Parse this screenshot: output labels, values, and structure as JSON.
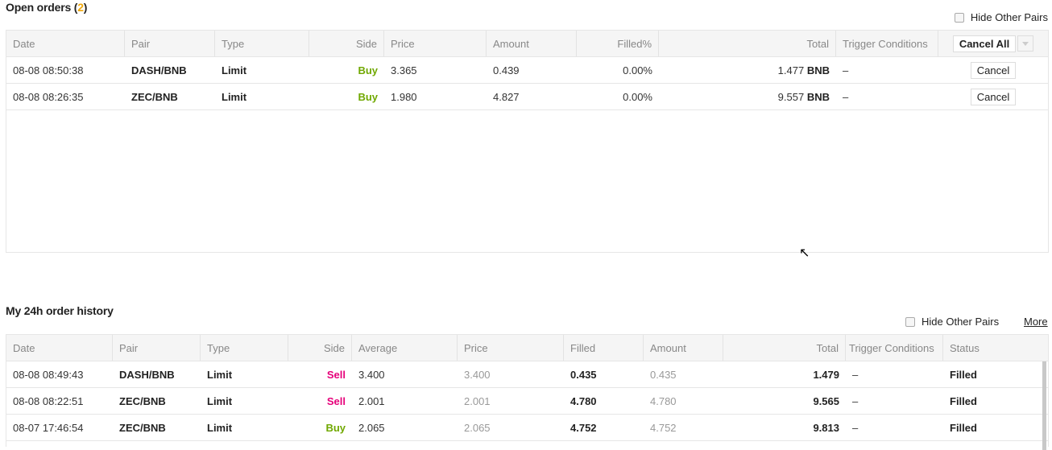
{
  "open_orders": {
    "title": "Open orders (",
    "count": "2",
    "title_end": ")",
    "hide_other_pairs": "Hide Other Pairs",
    "columns": [
      "Date",
      "Pair",
      "Type",
      "Side",
      "Price",
      "Amount",
      "Filled%",
      "Total",
      "Trigger Conditions"
    ],
    "cancel_all": "Cancel All",
    "cancel_label": "Cancel",
    "rows": [
      {
        "date": "08-08 08:50:38",
        "pair": "DASH/BNB",
        "type": "Limit",
        "side": "Buy",
        "price": "3.365",
        "amount": "0.439",
        "filled": "0.00%",
        "total": "1.477",
        "unit": "BNB",
        "trigger": "–"
      },
      {
        "date": "08-08 08:26:35",
        "pair": "ZEC/BNB",
        "type": "Limit",
        "side": "Buy",
        "price": "1.980",
        "amount": "4.827",
        "filled": "0.00%",
        "total": "9.557",
        "unit": "BNB",
        "trigger": "–"
      }
    ]
  },
  "history": {
    "title": "My 24h order history",
    "hide_other_pairs": "Hide Other Pairs",
    "more": "More",
    "columns": [
      "Date",
      "Pair",
      "Type",
      "Side",
      "Average",
      "Price",
      "Filled",
      "Amount",
      "Total",
      "Trigger Conditions",
      "Status"
    ],
    "rows": [
      {
        "date": "08-08 08:49:43",
        "pair": "DASH/BNB",
        "type": "Limit",
        "side": "Sell",
        "average": "3.400",
        "price": "3.400",
        "filled": "0.435",
        "amount": "0.435",
        "total": "1.479",
        "trigger": "–",
        "status": "Filled"
      },
      {
        "date": "08-08 08:22:51",
        "pair": "ZEC/BNB",
        "type": "Limit",
        "side": "Sell",
        "average": "2.001",
        "price": "2.001",
        "filled": "4.780",
        "amount": "4.780",
        "total": "9.565",
        "trigger": "–",
        "status": "Filled"
      },
      {
        "date": "08-07 17:46:54",
        "pair": "ZEC/BNB",
        "type": "Limit",
        "side": "Buy",
        "average": "2.065",
        "price": "2.065",
        "filled": "4.752",
        "amount": "4.752",
        "total": "9.813",
        "trigger": "–",
        "status": "Filled"
      }
    ]
  },
  "colors": {
    "buy": "#70a800",
    "sell": "#e6007a",
    "count": "#f0a70a"
  }
}
